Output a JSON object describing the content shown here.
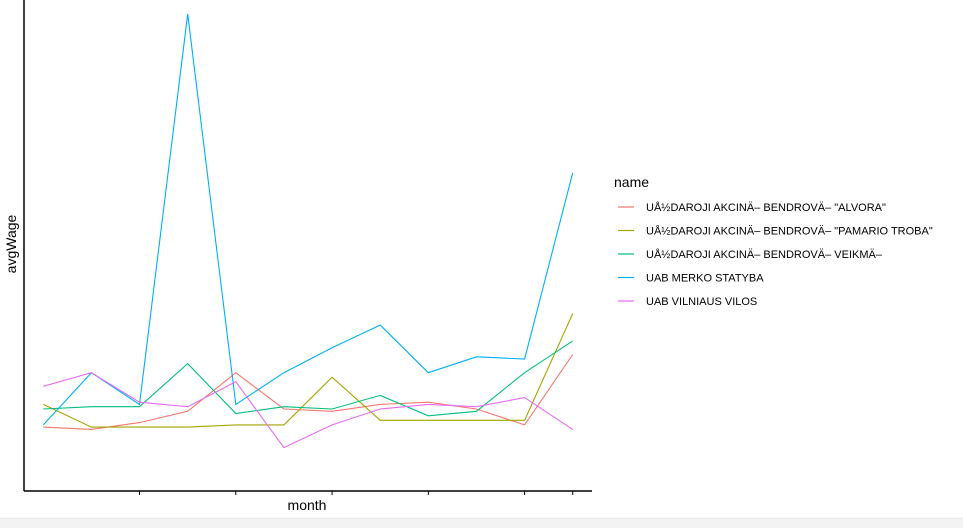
{
  "chart_data": {
    "type": "line",
    "title": "",
    "xlabel": "month",
    "ylabel": "avgWage",
    "legend": {
      "title": "name",
      "placement": "right"
    },
    "x": [
      1,
      2,
      3,
      4,
      5,
      6,
      7,
      8,
      9,
      10,
      11,
      12
    ],
    "xlim": [
      0.6,
      12.4
    ],
    "ylim": [
      0,
      100
    ],
    "x_ticks": [
      3,
      5,
      7,
      9,
      11,
      12
    ],
    "show_tick_labels": false,
    "grid": false,
    "series": [
      {
        "name": "UÅ½DAROJI AKCINÄ– BENDROVÄ– \"ALVORA\"",
        "color": "#F8766D",
        "values": [
          9.0,
          8.5,
          10.0,
          12.5,
          21.0,
          13.0,
          12.5,
          14.0,
          14.5,
          13.0,
          9.5,
          25.0
        ]
      },
      {
        "name": "UÅ½DAROJI AKCINÄ– BENDROVÄ– \"PAMARIO TROBA\"",
        "color": "#A3A500",
        "values": [
          14.0,
          9.0,
          9.0,
          9.0,
          9.5,
          9.5,
          20.0,
          10.5,
          10.5,
          10.5,
          10.5,
          34.0
        ]
      },
      {
        "name": "UÅ½DAROJI AKCINÄ– BENDROVÄ– VEIKMÄ–",
        "color": "#00BF7D",
        "values": [
          13.0,
          13.5,
          13.5,
          23.0,
          12.0,
          13.5,
          13.0,
          16.0,
          11.5,
          12.5,
          21.0,
          28.0
        ]
      },
      {
        "name": "UAB MERKO STATYBA",
        "color": "#00B0F6",
        "values": [
          9.5,
          21.0,
          14.0,
          100.0,
          14.0,
          21.0,
          26.5,
          31.5,
          21.0,
          24.5,
          24.0,
          65.0
        ]
      },
      {
        "name": "UAB VILNIAUS VILOS",
        "color": "#E76BF3",
        "values": [
          18.0,
          21.0,
          14.5,
          13.5,
          19.0,
          4.5,
          9.5,
          13.0,
          14.0,
          13.5,
          15.5,
          8.5
        ]
      }
    ]
  }
}
